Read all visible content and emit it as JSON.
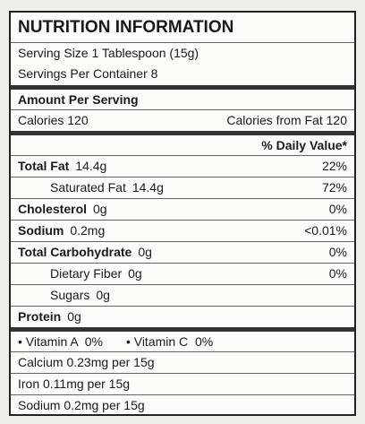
{
  "header": {
    "title": "NUTRITION INFORMATION"
  },
  "serving": {
    "size": "Serving Size 1 Tablespoon (15g)",
    "per_container": "Servings Per Container 8"
  },
  "amount_per_serving": "Amount Per Serving",
  "calories": {
    "label": "Calories 120",
    "from_fat": "Calories from Fat 120"
  },
  "daily_value_header": "% Daily Value*",
  "nutrients": [
    {
      "name": "Total Fat",
      "amount": "14.4g",
      "dv": "22%",
      "bold": true,
      "indent": false
    },
    {
      "name": "Saturated Fat",
      "amount": "14.4g",
      "dv": "72%",
      "bold": false,
      "indent": true
    },
    {
      "name": "Cholesterol",
      "amount": "0g",
      "dv": "0%",
      "bold": true,
      "indent": false
    },
    {
      "name": "Sodium",
      "amount": "0.2mg",
      "dv": "<0.01%",
      "bold": true,
      "indent": false
    },
    {
      "name": "Total Carbohydrate",
      "amount": "0g",
      "dv": "0%",
      "bold": true,
      "indent": false
    },
    {
      "name": "Dietary Fiber",
      "amount": "0g",
      "dv": "0%",
      "bold": false,
      "indent": true
    },
    {
      "name": "Sugars",
      "amount": "0g",
      "bold": false,
      "indent": true
    },
    {
      "name": "Protein",
      "amount": "0g",
      "bold": true,
      "indent": false
    }
  ],
  "vitamins": [
    "Vitamin A  0%",
    "Vitamin C  0%"
  ],
  "minerals": [
    "Calcium 0.23mg per 15g",
    "Iron 0.11mg per 15g",
    "Sodium 0.2mg per 15g"
  ]
}
